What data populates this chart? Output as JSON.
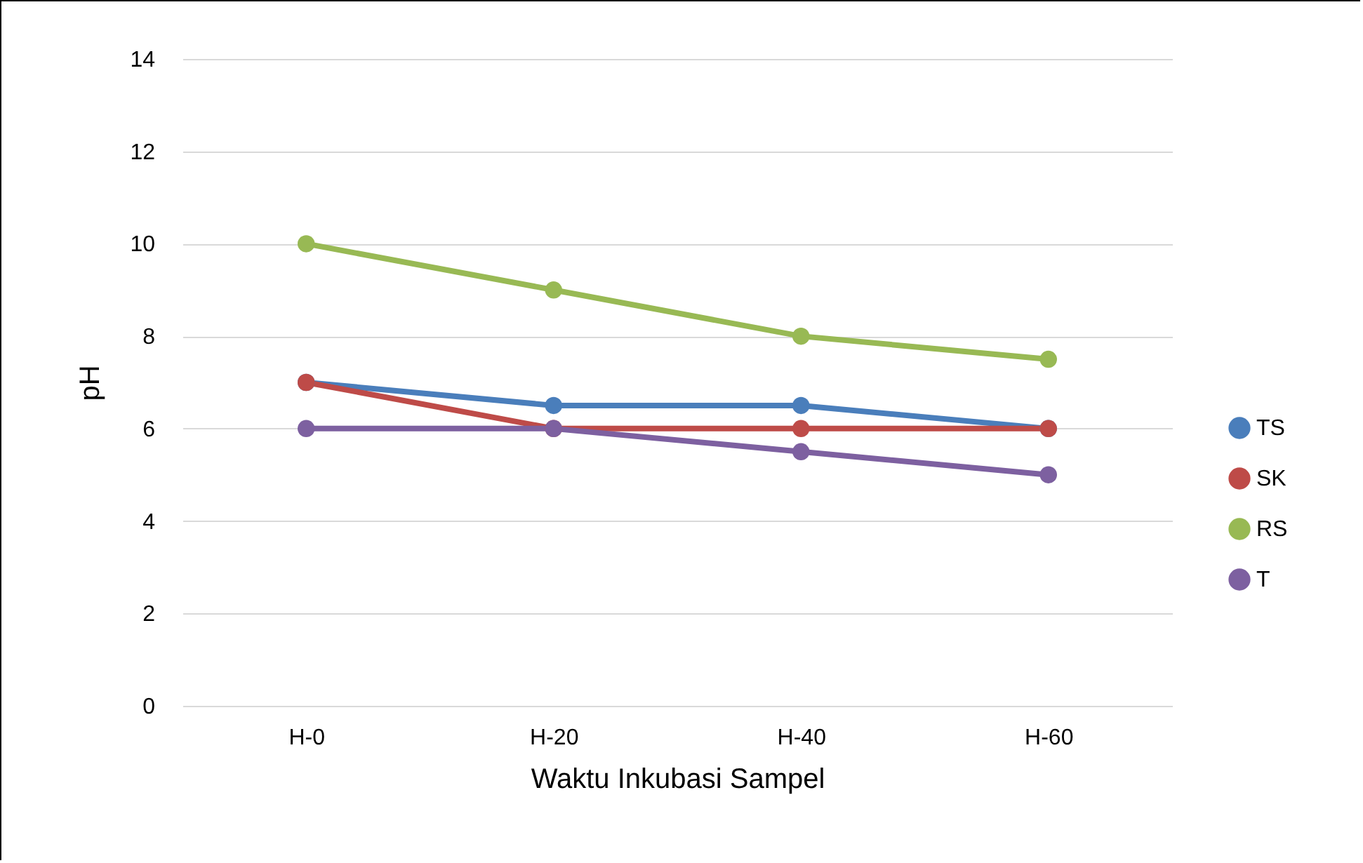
{
  "chart_data": {
    "type": "line",
    "xlabel": "Waktu Inkubasi Sampel",
    "ylabel": "pH",
    "categories": [
      "H-0",
      "H-20",
      "H-40",
      "H-60"
    ],
    "series": [
      {
        "name": "TS",
        "color": "#4a7ebb",
        "values": [
          7,
          6.5,
          6.5,
          6
        ]
      },
      {
        "name": "SK",
        "color": "#be4b48",
        "values": [
          7,
          6,
          6,
          6
        ]
      },
      {
        "name": "RS",
        "color": "#98b954",
        "values": [
          10,
          9,
          8,
          7.5
        ]
      },
      {
        "name": "T",
        "color": "#7d60a0",
        "values": [
          6,
          6,
          5.5,
          5
        ]
      }
    ],
    "ylim": [
      0,
      14
    ],
    "yticks": [
      0,
      2,
      4,
      6,
      8,
      10,
      12,
      14
    ],
    "grid": "y",
    "legend": "right",
    "marker": "circle",
    "line_style": "solid"
  }
}
